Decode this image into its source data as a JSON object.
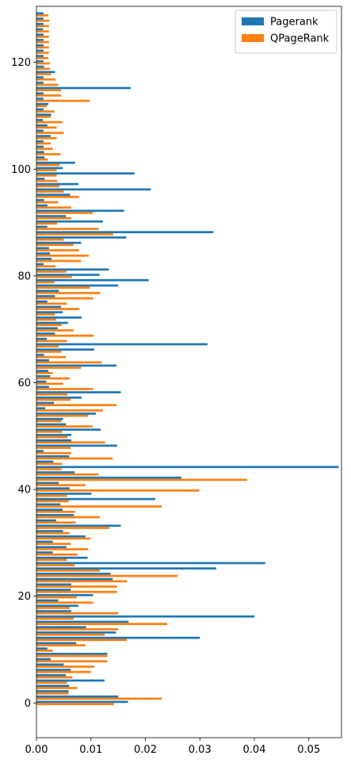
{
  "chart_data": {
    "type": "bar",
    "orientation": "horizontal",
    "title": "",
    "xlabel": "",
    "ylabel": "",
    "xlim": [
      0,
      0.056
    ],
    "ylim": [
      -6.5,
      130.5
    ],
    "x_ticks": [
      0.0,
      0.01,
      0.02,
      0.03,
      0.04,
      0.05
    ],
    "x_tick_labels": [
      "0.00",
      "0.01",
      "0.02",
      "0.03",
      "0.04",
      "0.05"
    ],
    "y_ticks": [
      0,
      20,
      40,
      60,
      80,
      100,
      120
    ],
    "y_tick_labels": [
      "0",
      "20",
      "40",
      "60",
      "80",
      "100",
      "120"
    ],
    "grid": false,
    "legend_position": "top-right",
    "colors": {
      "Pagerank": "#1f77b4",
      "QPageRank": "#ff7f0e"
    },
    "series": [
      {
        "name": "Pagerank",
        "values": [
          0.0168,
          0.015,
          0.0059,
          0.006,
          0.0125,
          0.0054,
          0.0063,
          0.005,
          0.0026,
          0.013,
          0.002,
          0.0073,
          0.03,
          0.0146,
          0.0091,
          0.0169,
          0.04,
          0.0064,
          0.0077,
          0.004,
          0.0104,
          0.0063,
          0.0064,
          0.014,
          0.0136,
          0.033,
          0.042,
          0.0094,
          0.003,
          0.0055,
          0.003,
          0.009,
          0.0049,
          0.0155,
          0.0036,
          0.0069,
          0.0048,
          0.0044,
          0.0218,
          0.0101,
          0.0061,
          0.0041,
          0.0266,
          0.007,
          0.0555,
          0.0031,
          0.006,
          0.0013,
          0.0148,
          0.0064,
          0.0064,
          0.0118,
          0.0054,
          0.0049,
          0.0109,
          0.0016,
          0.0032,
          0.0083,
          0.0155,
          0.0023,
          0.0018,
          0.0025,
          0.0022,
          0.0147,
          0.0023,
          0.0014,
          0.0106,
          0.0314,
          0.0019,
          0.0034,
          0.0039,
          0.0058,
          0.0083,
          0.0048,
          0.0045,
          0.002,
          0.0034,
          0.0041,
          0.015,
          0.0206,
          0.0116,
          0.0133,
          0.0013,
          0.0028,
          0.0025,
          0.0023,
          0.0082,
          0.0165,
          0.0325,
          0.002,
          0.0122,
          0.0054,
          0.0161,
          0.002,
          0.0014,
          0.0062,
          0.021,
          0.0077,
          0.0015,
          0.018,
          0.0048,
          0.0071,
          0.0015,
          0.0014,
          0.0013,
          0.0013,
          0.0026,
          0.0013,
          0.002,
          0.0012,
          0.0027,
          0.0013,
          0.0022,
          0.0013,
          0.0013,
          0.0173,
          0.0013,
          0.0013,
          0.0034,
          0.0014,
          0.0013,
          0.0013,
          0.0013,
          0.0013,
          0.0013,
          0.0013,
          0.0012,
          0.0013,
          0.0013,
          0.0013
        ]
      },
      {
        "name": "QPageRank",
        "values": [
          0.0142,
          0.023,
          0.0059,
          0.0075,
          0.0056,
          0.0066,
          0.01,
          0.0106,
          0.013,
          0.013,
          0.003,
          0.009,
          0.0166,
          0.0125,
          0.015,
          0.024,
          0.0068,
          0.015,
          0.0061,
          0.0104,
          0.0074,
          0.0148,
          0.0148,
          0.0166,
          0.0259,
          0.0116,
          0.007,
          0.0056,
          0.0076,
          0.0095,
          0.0063,
          0.0099,
          0.0061,
          0.0134,
          0.0072,
          0.0116,
          0.0071,
          0.023,
          0.0059,
          0.0056,
          0.0299,
          0.009,
          0.0387,
          0.0114,
          0.0046,
          0.0047,
          0.014,
          0.0064,
          0.0063,
          0.0126,
          0.0057,
          0.0047,
          0.0103,
          0.0046,
          0.0095,
          0.0122,
          0.0147,
          0.0063,
          0.0057,
          0.0104,
          0.0049,
          0.0061,
          0.003,
          0.0082,
          0.012,
          0.0054,
          0.0046,
          0.0041,
          0.0056,
          0.0105,
          0.0068,
          0.0046,
          0.0036,
          0.0034,
          0.0079,
          0.0056,
          0.0104,
          0.0117,
          0.0098,
          0.0033,
          0.0065,
          0.0055,
          0.0035,
          0.0082,
          0.0096,
          0.0078,
          0.0068,
          0.005,
          0.0141,
          0.0114,
          0.0038,
          0.0064,
          0.0103,
          0.0064,
          0.004,
          0.0078,
          0.005,
          0.0042,
          0.0038,
          0.0037,
          0.0037,
          0.0043,
          0.0021,
          0.0044,
          0.003,
          0.0026,
          0.0037,
          0.005,
          0.0037,
          0.0048,
          0.0026,
          0.0033,
          0.0019,
          0.0098,
          0.0045,
          0.0045,
          0.004,
          0.0035,
          0.0027,
          0.0025,
          0.0025,
          0.0022,
          0.0023,
          0.0023,
          0.0023,
          0.0023,
          0.0023,
          0.0023,
          0.0024,
          0.0022
        ]
      }
    ]
  }
}
